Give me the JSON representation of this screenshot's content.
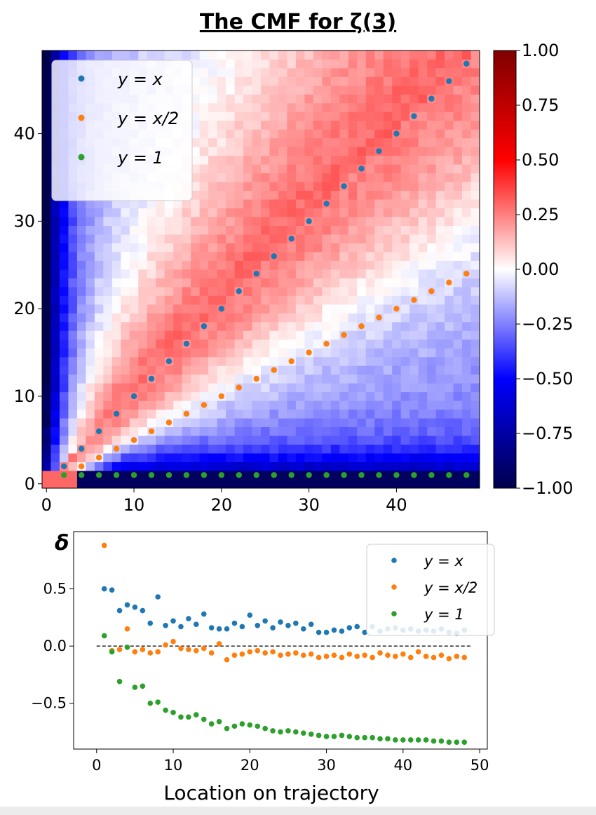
{
  "title": "The CMF for ζ(3)",
  "colors": {
    "series_y_eq_x": "#1f77b4",
    "series_y_eq_x_half": "#ff7f0e",
    "series_y_eq_1": "#2ca02c",
    "cmap_low": "#00004c",
    "cmap_mid": "#ffffff",
    "cmap_high": "#7f0000"
  },
  "chart_data": [
    {
      "type": "heatmap",
      "title": "The CMF for ζ(3)",
      "xlim": [
        -0.5,
        49.5
      ],
      "ylim": [
        -0.5,
        49.5
      ],
      "xticks": [
        "0",
        "10",
        "20",
        "30",
        "40"
      ],
      "yticks": [
        "0",
        "10",
        "20",
        "30",
        "40"
      ],
      "grid_size": 50,
      "value_model": "value(x,y) ≈ positive near the diagonal y=x band (up to ~0.6), falling to -1 toward x≈0 columns and y≈0 rows",
      "colorbar": {
        "min": -1.0,
        "max": 1.0,
        "ticks": [
          "1.00",
          "0.75",
          "0.50",
          "0.25",
          "0.00",
          "−0.25",
          "−0.50",
          "−0.75",
          "−1.00"
        ]
      },
      "legend": {
        "placement": "upper-left",
        "entries": [
          "y = x",
          "y = x/2",
          "y = 1"
        ]
      },
      "overlay_series": [
        {
          "name": "y = x",
          "x": [
            2,
            4,
            6,
            8,
            10,
            12,
            14,
            16,
            18,
            20,
            22,
            24,
            26,
            28,
            30,
            32,
            34,
            36,
            38,
            40,
            42,
            44,
            46,
            48
          ],
          "y": [
            2,
            4,
            6,
            8,
            10,
            12,
            14,
            16,
            18,
            20,
            22,
            24,
            26,
            28,
            30,
            32,
            34,
            36,
            38,
            40,
            42,
            44,
            46,
            48
          ]
        },
        {
          "name": "y = x/2",
          "x": [
            2,
            4,
            6,
            8,
            10,
            12,
            14,
            16,
            18,
            20,
            22,
            24,
            26,
            28,
            30,
            32,
            34,
            36,
            38,
            40,
            42,
            44,
            46,
            48
          ],
          "y": [
            1,
            2,
            3,
            4,
            5,
            6,
            7,
            8,
            9,
            10,
            11,
            12,
            13,
            14,
            15,
            16,
            17,
            18,
            19,
            20,
            21,
            22,
            23,
            24
          ]
        },
        {
          "name": "y = 1",
          "x": [
            2,
            4,
            6,
            8,
            10,
            12,
            14,
            16,
            18,
            20,
            22,
            24,
            26,
            28,
            30,
            32,
            34,
            36,
            38,
            40,
            42,
            44,
            46,
            48
          ],
          "y": [
            1,
            1,
            1,
            1,
            1,
            1,
            1,
            1,
            1,
            1,
            1,
            1,
            1,
            1,
            1,
            1,
            1,
            1,
            1,
            1,
            1,
            1,
            1,
            1
          ]
        }
      ]
    },
    {
      "type": "scatter",
      "ylabel": "δ",
      "xlabel": "Location on trajectory",
      "xlim": [
        -3,
        51
      ],
      "ylim": [
        -0.9,
        1.0
      ],
      "xticks": [
        "0",
        "10",
        "20",
        "30",
        "40",
        "50"
      ],
      "yticks": [
        "0.5",
        "0.0",
        "−0.5"
      ],
      "reference_line": {
        "y": 0.0,
        "style": "dashed"
      },
      "legend": {
        "placement": "upper-right",
        "entries": [
          "y = x",
          "y = x/2",
          "y = 1"
        ]
      },
      "x": [
        1,
        2,
        3,
        4,
        5,
        6,
        7,
        8,
        9,
        10,
        11,
        12,
        13,
        14,
        15,
        16,
        17,
        18,
        19,
        20,
        21,
        22,
        23,
        24,
        25,
        26,
        27,
        28,
        29,
        30,
        31,
        32,
        33,
        34,
        35,
        36,
        37,
        38,
        39,
        40,
        41,
        42,
        43,
        44,
        45,
        46,
        47,
        48
      ],
      "series": [
        {
          "name": "y = x",
          "values": [
            0.5,
            0.49,
            0.31,
            0.36,
            0.34,
            0.31,
            0.2,
            0.43,
            0.18,
            0.22,
            0.17,
            0.24,
            0.19,
            0.28,
            0.16,
            0.15,
            0.15,
            0.2,
            0.17,
            0.27,
            0.18,
            0.22,
            0.16,
            0.21,
            0.18,
            0.2,
            0.15,
            0.19,
            0.12,
            0.12,
            0.14,
            0.13,
            0.16,
            0.17,
            0.12,
            0.17,
            0.13,
            0.15,
            0.16,
            0.14,
            0.15,
            0.13,
            0.14,
            0.13,
            0.15,
            0.12,
            0.11,
            0.14
          ]
        },
        {
          "name": "y = x/2",
          "values": [
            0.88,
            -0.04,
            -0.03,
            0.15,
            -0.05,
            -0.03,
            -0.06,
            -0.05,
            0.01,
            0.04,
            -0.02,
            -0.03,
            -0.04,
            -0.02,
            -0.06,
            0.02,
            -0.12,
            -0.08,
            -0.07,
            -0.05,
            -0.04,
            -0.06,
            -0.05,
            -0.08,
            -0.07,
            -0.06,
            -0.08,
            -0.07,
            -0.1,
            -0.09,
            -0.08,
            -0.1,
            -0.07,
            -0.09,
            -0.08,
            -0.1,
            -0.06,
            -0.08,
            -0.09,
            -0.07,
            -0.1,
            -0.05,
            -0.09,
            -0.1,
            -0.08,
            -0.11,
            -0.09,
            -0.1
          ]
        },
        {
          "name": "y = 1",
          "values": [
            0.09,
            -0.05,
            -0.31,
            -0.01,
            -0.36,
            -0.35,
            -0.5,
            -0.49,
            -0.56,
            -0.58,
            -0.62,
            -0.62,
            -0.6,
            -0.64,
            -0.68,
            -0.66,
            -0.72,
            -0.7,
            -0.68,
            -0.69,
            -0.7,
            -0.72,
            -0.74,
            -0.75,
            -0.74,
            -0.75,
            -0.76,
            -0.77,
            -0.78,
            -0.79,
            -0.79,
            -0.78,
            -0.79,
            -0.8,
            -0.8,
            -0.8,
            -0.81,
            -0.81,
            -0.82,
            -0.82,
            -0.82,
            -0.82,
            -0.82,
            -0.83,
            -0.83,
            -0.84,
            -0.84,
            -0.84
          ]
        }
      ]
    }
  ]
}
